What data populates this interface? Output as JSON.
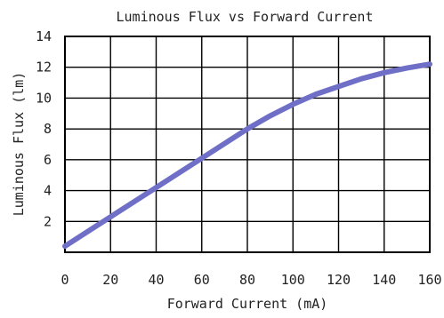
{
  "chart_data": {
    "type": "line",
    "title": "Luminous Flux vs Forward Current",
    "xlabel": "Forward Current (mA)",
    "ylabel": "Luminous Flux (lm)",
    "xlim": [
      0,
      160
    ],
    "ylim": [
      0,
      14
    ],
    "x_ticks": [
      0,
      20,
      40,
      60,
      80,
      100,
      120,
      140,
      160
    ],
    "y_ticks": [
      2,
      4,
      6,
      8,
      10,
      12,
      14
    ],
    "grid": true,
    "series": [
      {
        "color": "#6f6fc8",
        "x": [
          0,
          10,
          20,
          30,
          40,
          50,
          60,
          70,
          80,
          90,
          100,
          110,
          120,
          130,
          140,
          150,
          160
        ],
        "y": [
          0.4,
          1.35,
          2.3,
          3.25,
          4.2,
          5.15,
          6.1,
          7.05,
          8.0,
          8.85,
          9.6,
          10.25,
          10.75,
          11.25,
          11.65,
          11.95,
          12.2
        ]
      }
    ]
  }
}
